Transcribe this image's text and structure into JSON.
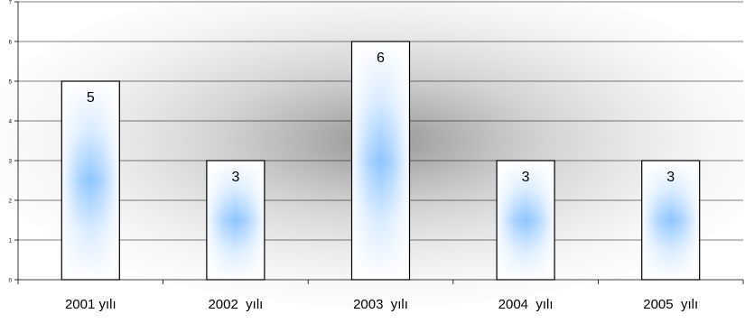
{
  "chart_data": {
    "type": "bar",
    "categories": [
      "2001 yılı",
      "2002  yılı",
      "2003  yılı",
      "2004  yılı",
      "2005  yılı"
    ],
    "values": [
      5,
      3,
      6,
      3,
      3
    ],
    "data_labels": [
      "5",
      "3",
      "6",
      "3",
      "3"
    ],
    "y_ticks": [
      "0",
      "1",
      "2",
      "3",
      "4",
      "5",
      "6",
      "7"
    ],
    "ylim": [
      0,
      7
    ],
    "title": "",
    "xlabel": "",
    "ylabel": "",
    "grid": true,
    "legend": "none",
    "colors": {
      "bar_edge": "#000000",
      "bar_center": "#8ec5ff",
      "bar_light": "#ffffff",
      "grid": "#000000",
      "plot_shadow": "#9a9a9a"
    }
  }
}
